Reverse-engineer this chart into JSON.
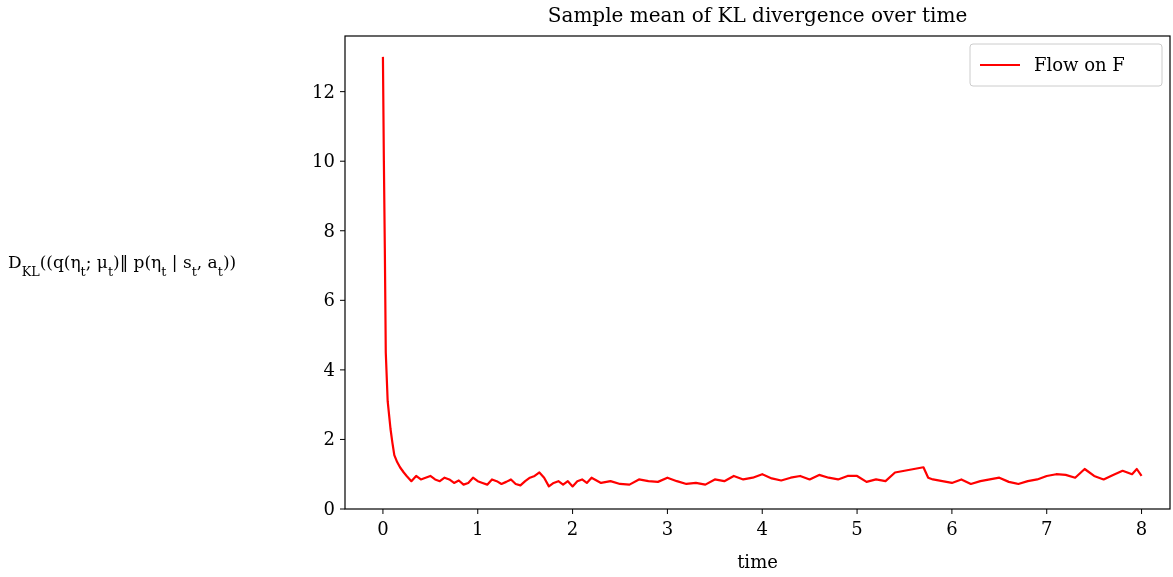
{
  "chart_data": {
    "type": "line",
    "title": "Sample mean of KL divergence over time",
    "xlabel": "time",
    "ylabel": "D$_{KL}$((q(η$_{t}$; μ$_{t}$)‖ p(η$_{t}$ | s$_{t}$, a$_{t}$))",
    "xlim": [
      -0.4,
      8.3
    ],
    "xticks": [
      0,
      1,
      2,
      3,
      4,
      5,
      6,
      7,
      8
    ],
    "ylim": [
      0,
      13.6
    ],
    "yticks": [
      0,
      2,
      4,
      6,
      8,
      10,
      12
    ],
    "grid": false,
    "legend": "top right",
    "marker": "none",
    "line_style": "solid",
    "series": [
      {
        "name": "Flow on F",
        "color": "#ff0000",
        "x": [
          0,
          0.01,
          0.02,
          0.03,
          0.05,
          0.08,
          0.1,
          0.12,
          0.15,
          0.18,
          0.22,
          0.25,
          0.3,
          0.35,
          0.4,
          0.45,
          0.5,
          0.55,
          0.6,
          0.65,
          0.7,
          0.75,
          0.8,
          0.85,
          0.9,
          0.95,
          1.0,
          1.05,
          1.1,
          1.15,
          1.2,
          1.25,
          1.3,
          1.35,
          1.4,
          1.45,
          1.5,
          1.55,
          1.6,
          1.65,
          1.7,
          1.75,
          1.8,
          1.85,
          1.9,
          1.95,
          2.0,
          2.05,
          2.1,
          2.15,
          2.2,
          2.3,
          2.4,
          2.5,
          2.6,
          2.7,
          2.8,
          2.9,
          3.0,
          3.1,
          3.2,
          3.3,
          3.4,
          3.5,
          3.6,
          3.7,
          3.8,
          3.9,
          4.0,
          4.1,
          4.2,
          4.3,
          4.4,
          4.5,
          4.6,
          4.7,
          4.8,
          4.9,
          5.0,
          5.1,
          5.2,
          5.3,
          5.4,
          5.5,
          5.6,
          5.7,
          5.75,
          5.8,
          5.9,
          6.0,
          6.1,
          6.2,
          6.3,
          6.4,
          6.5,
          6.6,
          6.7,
          6.8,
          6.9,
          7.0,
          7.1,
          7.2,
          7.3,
          7.4,
          7.5,
          7.6,
          7.7,
          7.8,
          7.9,
          7.95,
          8.0
        ],
        "values": [
          13,
          10,
          7.5,
          4.5,
          3.1,
          2.3,
          1.9,
          1.55,
          1.35,
          1.2,
          1.05,
          0.95,
          0.8,
          0.95,
          0.85,
          0.9,
          0.95,
          0.85,
          0.8,
          0.9,
          0.85,
          0.75,
          0.82,
          0.7,
          0.75,
          0.9,
          0.8,
          0.75,
          0.7,
          0.85,
          0.8,
          0.72,
          0.78,
          0.85,
          0.72,
          0.68,
          0.8,
          0.9,
          0.95,
          1.05,
          0.9,
          0.65,
          0.75,
          0.8,
          0.7,
          0.8,
          0.65,
          0.8,
          0.85,
          0.75,
          0.9,
          0.75,
          0.8,
          0.72,
          0.7,
          0.85,
          0.8,
          0.78,
          0.9,
          0.8,
          0.72,
          0.75,
          0.7,
          0.85,
          0.8,
          0.95,
          0.85,
          0.9,
          1.0,
          0.88,
          0.82,
          0.9,
          0.95,
          0.85,
          0.98,
          0.9,
          0.85,
          0.95,
          0.95,
          0.78,
          0.85,
          0.8,
          1.05,
          1.1,
          1.15,
          1.2,
          0.9,
          0.85,
          0.8,
          0.75,
          0.85,
          0.72,
          0.8,
          0.85,
          0.9,
          0.78,
          0.72,
          0.8,
          0.85,
          0.95,
          1.0,
          0.98,
          0.9,
          1.15,
          0.95,
          0.85,
          0.98,
          1.1,
          1.0,
          1.15,
          0.95
        ]
      }
    ]
  }
}
